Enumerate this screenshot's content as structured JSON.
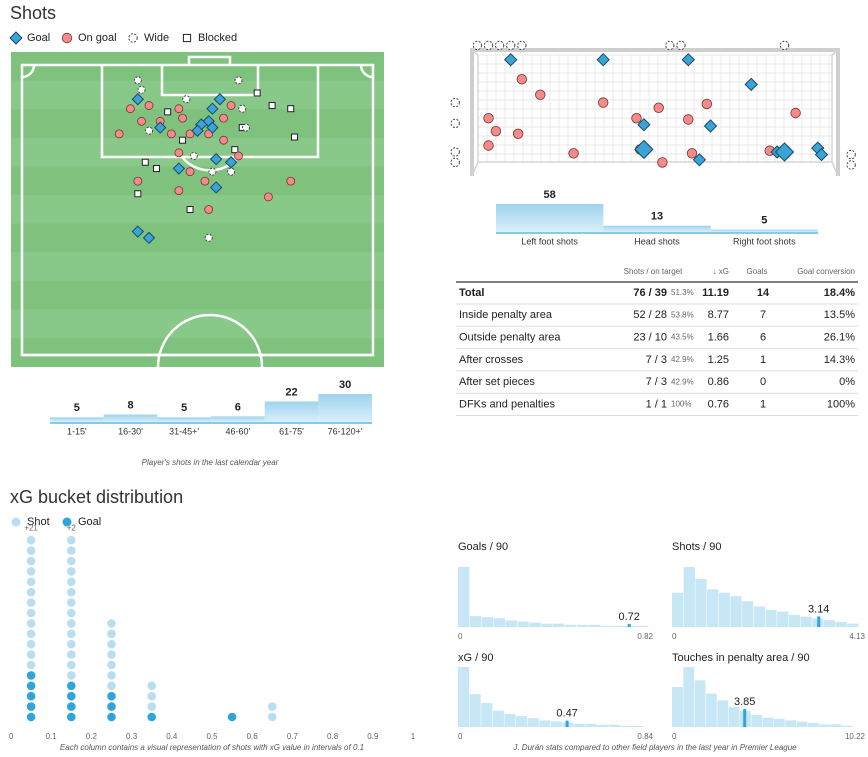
{
  "shots": {
    "title": "Shots",
    "pitch": {
      "type": "scatter",
      "xlim": [
        0,
        100
      ],
      "ylim": [
        0,
        100
      ],
      "series": [
        {
          "name": "Goal",
          "color": "#3ba3d6",
          "x": [
            56,
            53,
            54,
            54,
            34,
            40,
            51,
            55,
            45,
            55,
            34,
            37,
            59,
            50
          ],
          "y": [
            15,
            22,
            18,
            24,
            15,
            24,
            23,
            34,
            37,
            43,
            57,
            59,
            35,
            25
          ]
        },
        {
          "name": "On goal",
          "color": "#f28b8b",
          "x": [
            59,
            37,
            35,
            29,
            46,
            40,
            43,
            48,
            53,
            57,
            45,
            61,
            48,
            75,
            69,
            34,
            53,
            45,
            45,
            32,
            57,
            52
          ],
          "y": [
            17,
            17,
            22,
            26,
            21,
            22,
            26,
            26,
            26,
            28,
            32,
            33,
            38,
            41,
            46,
            41,
            50,
            44,
            18,
            18,
            21,
            41
          ]
        },
        {
          "name": "Wide",
          "color": "#ffffff",
          "x": [
            34,
            35,
            47,
            62,
            63,
            37,
            53,
            54,
            61,
            49,
            59
          ],
          "y": [
            9,
            12,
            15,
            18,
            24,
            25,
            59,
            38,
            9,
            33,
            38
          ]
        },
        {
          "name": "Blocked",
          "color": "#ffffff",
          "x": [
            66,
            75,
            76,
            70,
            62,
            36,
            39,
            34,
            48,
            42,
            60,
            46
          ],
          "y": [
            13,
            18,
            27,
            17,
            24,
            35,
            37,
            45,
            50,
            19,
            31,
            28
          ]
        }
      ]
    },
    "goal_frame": {
      "type": "scatter",
      "xlim": [
        0,
        100
      ],
      "ylim": [
        0,
        100
      ],
      "series": [
        {
          "x": [
            11,
            36,
            59,
            76,
            47,
            65,
            47,
            62,
            83,
            85,
            94,
            95
          ],
          "y": [
            9,
            9,
            9,
            28,
            59,
            60,
            78,
            86,
            80,
            80,
            77,
            82
          ]
        },
        {
          "x": [
            14,
            19,
            36,
            51,
            64,
            88,
            5,
            7,
            13,
            28,
            46,
            60,
            81,
            59,
            45,
            52,
            5
          ],
          "y": [
            24,
            36,
            42,
            46,
            43,
            50,
            54,
            64,
            66,
            81,
            78,
            81,
            79,
            55,
            54,
            88,
            75
          ]
        },
        {
          "x": [
            2,
            5,
            8,
            11,
            14,
            54,
            57,
            85,
            -4,
            -4,
            -4,
            -4,
            103,
            103
          ],
          "y": [
            -2,
            -2,
            -2,
            -2,
            -2,
            -2,
            -2,
            -2,
            42,
            58,
            80,
            88,
            82,
            90
          ]
        }
      ]
    },
    "by_time": {
      "type": "bar",
      "categories": [
        "1-15'",
        "16-30'",
        "31-45+'",
        "46-60'",
        "61-75'",
        "76-120+'"
      ],
      "values": [
        5,
        8,
        5,
        6,
        22,
        30
      ],
      "caption": "Player's shots in the last calendar year"
    },
    "by_body_part": {
      "type": "bar",
      "categories": [
        "Left foot shots",
        "Head shots",
        "Right foot shots"
      ],
      "values": [
        58,
        13,
        5
      ]
    },
    "table": {
      "header": [
        "Shots / on target",
        "↓ xG",
        "Goals",
        "Goal conversion"
      ],
      "rows": [
        [
          "Total",
          "76 / 39",
          "51.3%",
          "11.19",
          "14",
          "18.4%"
        ],
        [
          "Inside penalty area",
          "52 / 28",
          "53.8%",
          "8.77",
          "7",
          "13.5%"
        ],
        [
          "Outside penalty area",
          "23 / 10",
          "43.5%",
          "1.66",
          "6",
          "26.1%"
        ],
        [
          "After crosses",
          "7 / 3",
          "42.9%",
          "1.25",
          "1",
          "14.3%"
        ],
        [
          "After set pieces",
          "7 / 3",
          "42.9%",
          "0.86",
          "0",
          "0%"
        ],
        [
          "DFKs and penalties",
          "1 / 1",
          "100%",
          "0.76",
          "1",
          "100%"
        ]
      ]
    }
  },
  "xg": {
    "type": "dots",
    "title": "xG bucket distribution",
    "x": [
      0.05,
      0.15,
      0.25,
      0.35,
      0.55,
      0.65
    ],
    "series": [
      {
        "name": "Shot",
        "color": "#b9def2",
        "values": [
          39,
          20,
          10,
          4,
          1,
          2
        ]
      },
      {
        "name": "Goal",
        "color": "#2ea6dc",
        "values": [
          5,
          4,
          3,
          1,
          1,
          0
        ]
      }
    ],
    "overflow": [
      21,
      2,
      null,
      null,
      null,
      null
    ],
    "overflow_labels": [
      "+21",
      "+2",
      null,
      null,
      null,
      null
    ],
    "xlim": [
      0,
      1
    ],
    "xticks": [
      0,
      0.1,
      0.2,
      0.3,
      0.4,
      0.5,
      0.6,
      0.7,
      0.8,
      0.9,
      1
    ],
    "caption": "Each column contains a visual representation of shots with xG value in intervals of 0.1"
  },
  "comparisons": {
    "caption": "J. Durán stats compared to other field players in the last year in Premier League",
    "charts": [
      {
        "type": "histogram",
        "title": "Goals / 90",
        "xlim": [
          0,
          0.82
        ],
        "xticks": [
          0,
          0.82
        ],
        "marker": 0.72,
        "bins": [
          0,
          0.05,
          0.1,
          0.15,
          0.2,
          0.25,
          0.3,
          0.35,
          0.4,
          0.45,
          0.5,
          0.55,
          0.6,
          0.65,
          0.7,
          0.75,
          0.8
        ],
        "counts": [
          55,
          10,
          9,
          8,
          6,
          5,
          4,
          3,
          3,
          2,
          2,
          2,
          1,
          1,
          1,
          1
        ]
      },
      {
        "type": "histogram",
        "title": "Shots / 90",
        "xlim": [
          0,
          4.13
        ],
        "xticks": [
          0,
          4.13
        ],
        "marker": 3.14,
        "bins": [
          0,
          0.25,
          0.5,
          0.75,
          1,
          1.25,
          1.5,
          1.75,
          2,
          2.25,
          2.5,
          2.75,
          3,
          3.25,
          3.5,
          3.75,
          4
        ],
        "counts": [
          20,
          35,
          28,
          22,
          20,
          18,
          15,
          12,
          10,
          9,
          7,
          6,
          5,
          4,
          3,
          2
        ]
      },
      {
        "type": "histogram",
        "title": "xG / 90",
        "xlim": [
          0,
          0.84
        ],
        "xticks": [
          0,
          0.84
        ],
        "marker": 0.47,
        "bins": [
          0,
          0.05,
          0.1,
          0.15,
          0.2,
          0.25,
          0.3,
          0.35,
          0.4,
          0.45,
          0.5,
          0.55,
          0.6,
          0.65,
          0.7,
          0.75,
          0.8
        ],
        "counts": [
          55,
          30,
          22,
          15,
          12,
          10,
          8,
          6,
          5,
          4,
          3,
          3,
          2,
          2,
          1,
          1
        ]
      },
      {
        "type": "histogram",
        "title": "Touches in penalty area / 90",
        "xlim": [
          0,
          10.22
        ],
        "xticks": [
          0,
          10.22
        ],
        "marker": 3.85,
        "bins": [
          0,
          0.6,
          1.2,
          1.8,
          2.4,
          3,
          3.6,
          4.2,
          4.8,
          5.4,
          6,
          6.6,
          7.2,
          7.8,
          8.4,
          9,
          9.6
        ],
        "counts": [
          30,
          45,
          35,
          25,
          20,
          15,
          12,
          9,
          7,
          6,
          5,
          4,
          3,
          2,
          2,
          1
        ]
      }
    ]
  }
}
